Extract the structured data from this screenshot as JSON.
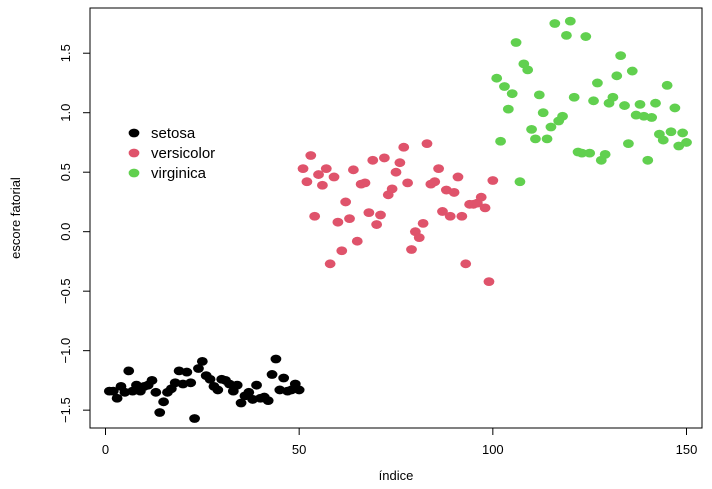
{
  "chart_data": {
    "type": "scatter",
    "xlabel": "índice",
    "ylabel": "escore fatorial",
    "xlim": [
      -4,
      154
    ],
    "ylim": [
      -1.65,
      1.88
    ],
    "x_ticks": [
      0,
      50,
      100,
      150
    ],
    "y_ticks": [
      -1.5,
      -1.0,
      -0.5,
      0.0,
      0.5,
      1.0,
      1.5
    ],
    "x_tick_labels": [
      "0",
      "50",
      "100",
      "150"
    ],
    "y_tick_labels": [
      "−1.5",
      "−1.0",
      "−0.5",
      "0.0",
      "0.5",
      "1.0",
      "1.5"
    ],
    "grid": false,
    "legend_position": "top-left",
    "series": [
      {
        "name": "setosa",
        "color": "#000000",
        "x": [
          1,
          2,
          3,
          4,
          5,
          6,
          7,
          8,
          9,
          10,
          11,
          12,
          13,
          14,
          15,
          16,
          17,
          18,
          19,
          20,
          21,
          22,
          23,
          24,
          25,
          26,
          27,
          28,
          29,
          30,
          31,
          32,
          33,
          34,
          35,
          36,
          37,
          38,
          39,
          40,
          41,
          42,
          43,
          44,
          45,
          46,
          47,
          48,
          49,
          50
        ],
        "y": [
          -1.34,
          -1.34,
          -1.4,
          -1.3,
          -1.35,
          -1.17,
          -1.34,
          -1.29,
          -1.34,
          -1.3,
          -1.29,
          -1.25,
          -1.35,
          -1.52,
          -1.43,
          -1.35,
          -1.32,
          -1.27,
          -1.17,
          -1.28,
          -1.18,
          -1.27,
          -1.57,
          -1.15,
          -1.09,
          -1.21,
          -1.24,
          -1.3,
          -1.33,
          -1.24,
          -1.25,
          -1.28,
          -1.34,
          -1.29,
          -1.44,
          -1.38,
          -1.35,
          -1.41,
          -1.29,
          -1.4,
          -1.39,
          -1.42,
          -1.2,
          -1.07,
          -1.33,
          -1.23,
          -1.34,
          -1.33,
          -1.28,
          -1.33
        ]
      },
      {
        "name": "versicolor",
        "color": "#df536b",
        "x": [
          51,
          52,
          53,
          54,
          55,
          56,
          57,
          58,
          59,
          60,
          61,
          62,
          63,
          64,
          65,
          66,
          67,
          68,
          69,
          70,
          71,
          72,
          73,
          74,
          75,
          76,
          77,
          78,
          79,
          80,
          81,
          82,
          83,
          84,
          85,
          86,
          87,
          88,
          89,
          90,
          91,
          92,
          93,
          94,
          95,
          96,
          97,
          98,
          99,
          100
        ],
        "y": [
          0.53,
          0.42,
          0.64,
          0.13,
          0.48,
          0.39,
          0.53,
          -0.27,
          0.46,
          0.08,
          -0.16,
          0.25,
          0.11,
          0.52,
          -0.08,
          0.4,
          0.41,
          0.16,
          0.6,
          0.06,
          0.14,
          0.62,
          0.31,
          0.36,
          0.5,
          0.58,
          0.71,
          0.41,
          -0.15,
          0.0,
          -0.05,
          0.07,
          0.74,
          0.4,
          0.42,
          0.53,
          0.17,
          0.35,
          0.13,
          0.33,
          0.46,
          0.13,
          -0.27,
          0.23,
          0.23,
          0.24,
          0.29,
          0.2,
          -0.42,
          0.43
        ]
      },
      {
        "name": "virginica",
        "color": "#61d04f",
        "x": [
          101,
          102,
          103,
          104,
          105,
          106,
          107,
          108,
          109,
          110,
          111,
          112,
          113,
          114,
          115,
          116,
          117,
          118,
          119,
          120,
          121,
          122,
          123,
          124,
          125,
          126,
          127,
          128,
          129,
          130,
          131,
          132,
          133,
          134,
          135,
          136,
          137,
          138,
          139,
          140,
          141,
          142,
          143,
          144,
          145,
          146,
          147,
          148,
          149,
          150
        ],
        "y": [
          1.29,
          0.76,
          1.22,
          1.03,
          1.16,
          1.59,
          0.42,
          1.41,
          1.36,
          0.86,
          0.78,
          1.15,
          1.0,
          0.78,
          0.88,
          1.75,
          0.93,
          0.97,
          1.65,
          1.77,
          1.13,
          0.67,
          0.66,
          1.64,
          0.66,
          1.1,
          1.25,
          0.6,
          0.65,
          1.08,
          1.13,
          1.31,
          1.48,
          1.06,
          0.74,
          1.35,
          0.98,
          1.07,
          0.97,
          0.6,
          0.96,
          1.08,
          0.82,
          0.77,
          1.23,
          0.84,
          1.04,
          0.72,
          0.83,
          0.75
        ]
      }
    ]
  }
}
